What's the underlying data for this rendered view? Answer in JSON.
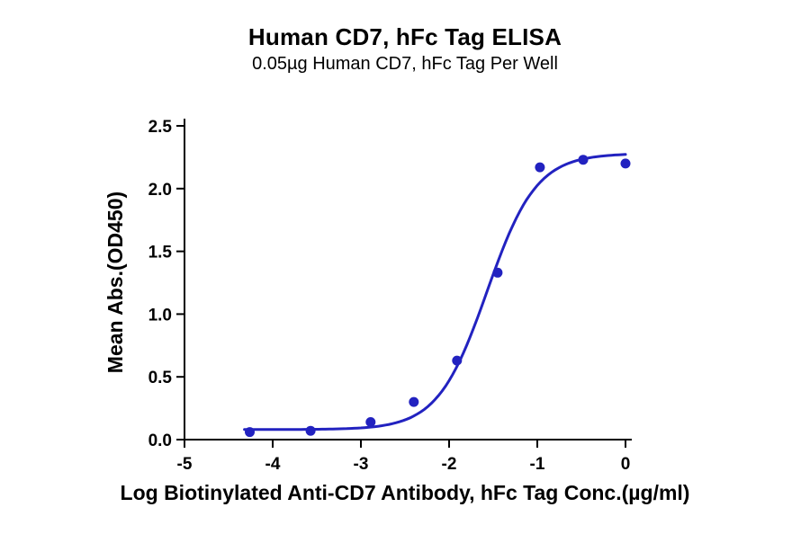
{
  "chart_data": {
    "type": "scatter",
    "title": "Human CD7, hFc Tag ELISA",
    "subtitle": "0.05µg Human CD7, hFc Tag Per Well",
    "xlabel": "Log Biotinylated Anti-CD7 Antibody, hFc Tag Conc.(µg/ml)",
    "ylabel": "Mean Abs.(OD450)",
    "xlim": [
      -5,
      0
    ],
    "ylim": [
      0,
      2.5
    ],
    "x_ticks": [
      -5,
      -4,
      -3,
      -2,
      -1,
      0
    ],
    "y_ticks": [
      0,
      0.5,
      1,
      1.5,
      2,
      2.5
    ],
    "grid": false,
    "legend": "none",
    "color": "#2222c0",
    "points": {
      "x": [
        -4.26,
        -3.57,
        -2.89,
        -2.4,
        -1.91,
        -1.45,
        -0.97,
        -0.48,
        0
      ],
      "y": [
        0.06,
        0.07,
        0.14,
        0.3,
        0.63,
        1.33,
        2.17,
        2.23,
        2.2
      ]
    },
    "fit_curve": {
      "model": "4PL sigmoid",
      "bottom": 0.08,
      "top": 2.28,
      "log_ec50": -1.57,
      "hill_slope": 1.55,
      "x_range": [
        -4.32,
        0
      ]
    }
  }
}
